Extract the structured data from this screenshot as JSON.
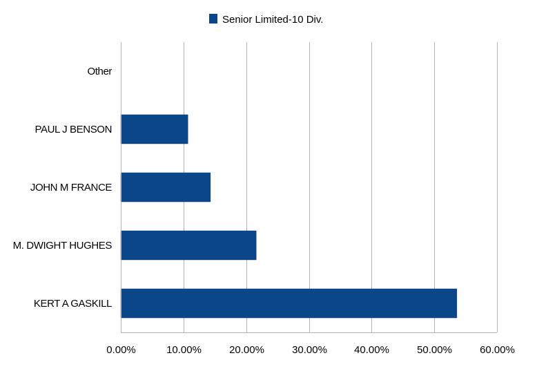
{
  "chart_data": {
    "type": "bar",
    "orientation": "horizontal",
    "categories": [
      "KERT A GASKILL",
      "M. DWIGHT HUGHES",
      "JOHN M FRANCE",
      "PAUL J BENSON",
      "Other"
    ],
    "series": [
      {
        "name": "Senior Limited-10 Div.",
        "color": "#0b4689",
        "values": [
          0.536,
          0.216,
          0.143,
          0.107,
          0.0
        ]
      }
    ],
    "xlim": [
      0,
      0.6
    ],
    "xticks": [
      0,
      0.1,
      0.2,
      0.3,
      0.4,
      0.5,
      0.6
    ],
    "xtick_labels": [
      "0.00%",
      "10.00%",
      "20.00%",
      "30.00%",
      "40.00%",
      "50.00%",
      "60.00%"
    ],
    "grid": "vertical",
    "legend": "top-center",
    "title": "",
    "xlabel": "",
    "ylabel": ""
  }
}
